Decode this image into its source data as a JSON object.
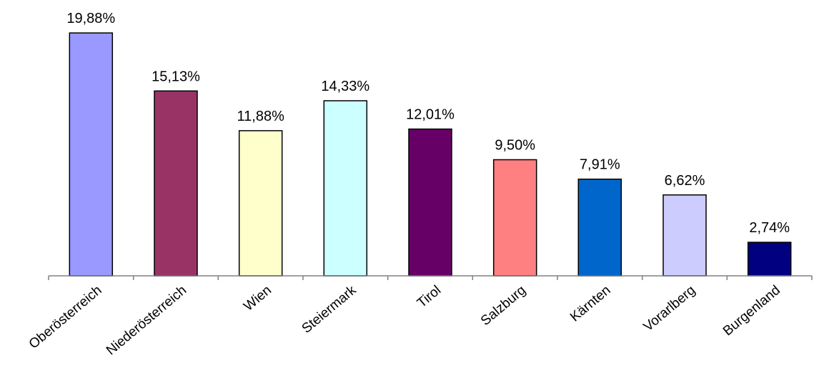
{
  "chart_data": {
    "type": "bar",
    "title": "",
    "xlabel": "",
    "ylabel": "",
    "ylim": [
      0,
      20
    ],
    "grid": false,
    "legend": "none",
    "categories": [
      "Oberösterreich",
      "Niederösterreich",
      "Wien",
      "Steiermark",
      "Tirol",
      "Salzburg",
      "Kärnten",
      "Vorarlberg",
      "Burgenland"
    ],
    "values": [
      19.88,
      15.13,
      11.88,
      14.33,
      12.01,
      9.5,
      7.91,
      6.62,
      2.74
    ],
    "data_labels": [
      "19,88%",
      "15,13%",
      "11,88%",
      "14,33%",
      "12,01%",
      "9,50%",
      "7,91%",
      "6,62%",
      "2,74%"
    ],
    "colors": [
      "#9999ff",
      "#993366",
      "#ffffcc",
      "#ccffff",
      "#660066",
      "#ff8080",
      "#0066cc",
      "#ccccff",
      "#000080"
    ]
  }
}
